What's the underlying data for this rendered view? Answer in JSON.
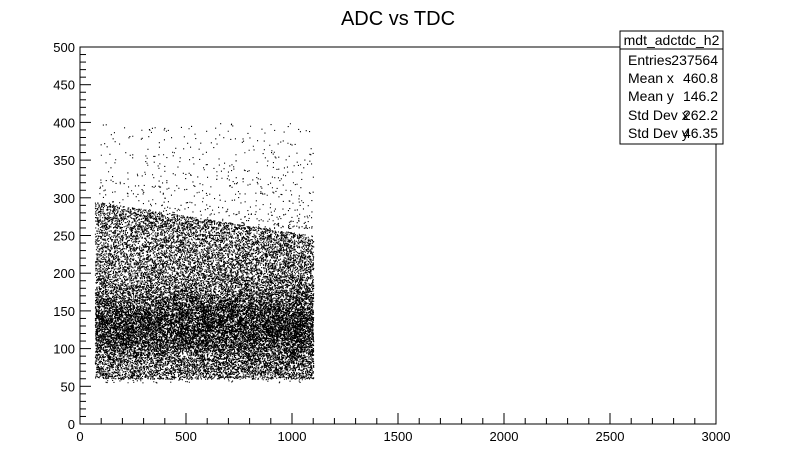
{
  "chart_data": {
    "type": "scatter",
    "title": "ADC vs TDC",
    "xlabel": "",
    "ylabel": "",
    "xlim": [
      0,
      3000
    ],
    "ylim": [
      0,
      500
    ],
    "x_ticks": [
      0,
      500,
      1000,
      1500,
      2000,
      2500,
      3000
    ],
    "y_ticks": [
      0,
      50,
      100,
      150,
      200,
      250,
      300,
      350,
      400,
      450,
      500
    ],
    "x_tick_labels": [
      "0",
      "500",
      "1000",
      "1500",
      "2000",
      "2500",
      "3000"
    ],
    "y_tick_labels": [
      "0",
      "50",
      "100",
      "150",
      "200",
      "250",
      "300",
      "350",
      "400",
      "450",
      "500"
    ],
    "grid": false,
    "legend": "none",
    "point_color": "#000000",
    "distribution": {
      "x_range": [
        70,
        1100
      ],
      "dense_y_range": [
        60,
        300
      ],
      "sparse_y_max": 400
    },
    "stats_box": {
      "placement": "top-right",
      "name": "mdt_adctdc_h2",
      "rows": [
        {
          "label": "Entries",
          "value": "237564"
        },
        {
          "label": "Mean x",
          "value": "460.8"
        },
        {
          "label": "Mean y",
          "value": "146.2"
        },
        {
          "label": "Std Dev x",
          "value": "262.2"
        },
        {
          "label": "Std Dev y",
          "value": "46.35"
        }
      ]
    }
  }
}
